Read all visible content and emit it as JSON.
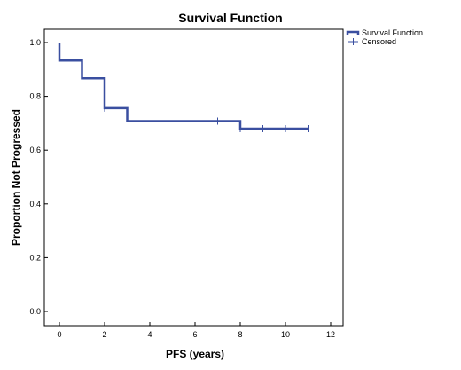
{
  "chart_data": {
    "type": "line",
    "title": "Survival Function",
    "xlabel": "PFS (years)",
    "ylabel": "Proportion Not Progressed",
    "xlim": [
      0,
      12
    ],
    "ylim": [
      0.0,
      1.0
    ],
    "xticks": [
      "0",
      "2",
      "4",
      "6",
      "8",
      "10",
      "12"
    ],
    "yticks": [
      "0.0",
      "0.2",
      "0.4",
      "0.6",
      "0.8",
      "1.0"
    ],
    "grid": false,
    "legend_position": "top-right",
    "series": [
      {
        "name": "Survival Function",
        "color": "#3a4fa0",
        "step_points": [
          {
            "x": 0,
            "y": 1.0
          },
          {
            "x": 0,
            "y": 0.933
          },
          {
            "x": 1,
            "y": 0.933
          },
          {
            "x": 1,
            "y": 0.867
          },
          {
            "x": 2,
            "y": 0.867
          },
          {
            "x": 2,
            "y": 0.756
          },
          {
            "x": 3,
            "y": 0.756
          },
          {
            "x": 3,
            "y": 0.708
          },
          {
            "x": 8,
            "y": 0.708
          },
          {
            "x": 8,
            "y": 0.68
          },
          {
            "x": 11,
            "y": 0.68
          }
        ]
      },
      {
        "name": "Censored",
        "color": "#3a4fa0",
        "points": [
          {
            "x": 2,
            "y": 0.756
          },
          {
            "x": 7,
            "y": 0.708
          },
          {
            "x": 8,
            "y": 0.68
          },
          {
            "x": 9,
            "y": 0.68
          },
          {
            "x": 10,
            "y": 0.68
          },
          {
            "x": 11,
            "y": 0.68
          }
        ]
      }
    ]
  }
}
